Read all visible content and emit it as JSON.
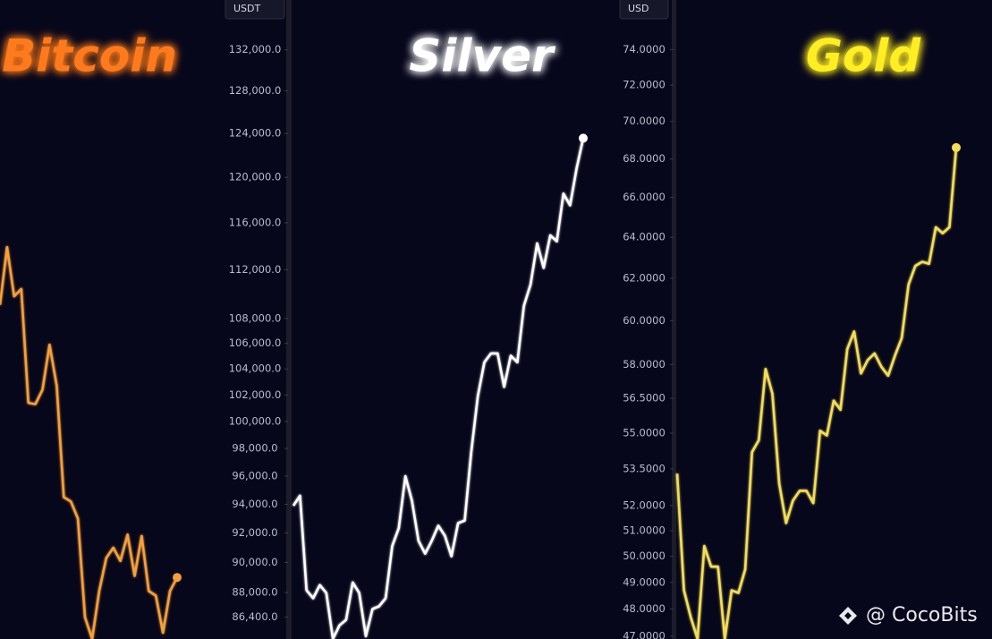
{
  "chart_data": [
    {
      "type": "line",
      "title": "Bitcoin",
      "title_color": "#ff7a1a",
      "ylabel": "USDT",
      "log": true,
      "series": [
        {
          "name": "Bitcoin",
          "color": "#f5a03a",
          "values": [
            109100,
            113900,
            109800,
            110400,
            101400,
            101300,
            102400,
            105900,
            102700,
            94500,
            94200,
            93000,
            86400,
            85000,
            88100,
            90300,
            91000,
            90100,
            91900,
            89100,
            91800,
            88100,
            87800,
            85400,
            88100,
            89000
          ]
        }
      ],
      "ylim": [
        85000,
        137000
      ],
      "yticks": [
        {
          "value": 132000,
          "label": "132,000.0"
        },
        {
          "value": 128000,
          "label": "128,000.0"
        },
        {
          "value": 124000,
          "label": "124,000.0"
        },
        {
          "value": 120000,
          "label": "120,000.0"
        },
        {
          "value": 116000,
          "label": "116,000.0"
        },
        {
          "value": 112000,
          "label": "112,000.0"
        },
        {
          "value": 108000,
          "label": "108,000.0"
        },
        {
          "value": 106000,
          "label": "106,000.0"
        },
        {
          "value": 104000,
          "label": "104,000.0"
        },
        {
          "value": 102000,
          "label": "102,000.0"
        },
        {
          "value": 100000,
          "label": "100,000.0"
        },
        {
          "value": 98000,
          "label": "98,000.0"
        },
        {
          "value": 96000,
          "label": "96,000.0"
        },
        {
          "value": 94000,
          "label": "94,000.0"
        },
        {
          "value": 92000,
          "label": "92,000.0"
        },
        {
          "value": 90000,
          "label": "90,000.0"
        },
        {
          "value": 88000,
          "label": "88,000.0"
        },
        {
          "value": 86400,
          "label": "86,400.0"
        }
      ]
    },
    {
      "type": "line",
      "title": "Silver",
      "title_color": "#ffffff",
      "ylabel": "USD",
      "log": true,
      "series": [
        {
          "name": "Silver",
          "color": "#ffffff",
          "values": [
            52.0,
            52.4,
            48.7,
            48.4,
            48.9,
            48.6,
            46.9,
            47.4,
            47.6,
            49.0,
            48.6,
            47.0,
            48.0,
            48.1,
            48.4,
            50.4,
            51.1,
            53.2,
            52.2,
            50.6,
            50.1,
            50.6,
            51.2,
            50.8,
            50.0,
            51.3,
            51.4,
            54.2,
            56.6,
            58.1,
            58.5,
            58.5,
            57.0,
            58.4,
            58.1,
            60.7,
            61.7,
            63.7,
            62.5,
            64.1,
            63.8,
            66.2,
            65.6,
            67.5,
            69.1
          ]
        }
      ],
      "ylim": [
        46.9,
        76.9
      ],
      "yticks": [
        {
          "value": 74,
          "label": "74.0000"
        },
        {
          "value": 72,
          "label": "72.0000"
        },
        {
          "value": 70,
          "label": "70.0000"
        },
        {
          "value": 68,
          "label": "68.0000"
        },
        {
          "value": 66,
          "label": "66.0000"
        },
        {
          "value": 64,
          "label": "64.0000"
        },
        {
          "value": 62,
          "label": "62.0000"
        },
        {
          "value": 60,
          "label": "60.0000"
        },
        {
          "value": 58,
          "label": "58.0000"
        },
        {
          "value": 56.5,
          "label": "56.5000"
        },
        {
          "value": 55,
          "label": "55.0000"
        },
        {
          "value": 53.5,
          "label": "53.5000"
        },
        {
          "value": 52,
          "label": "52.0000"
        },
        {
          "value": 51,
          "label": "51.0000"
        },
        {
          "value": 50,
          "label": "50.0000"
        },
        {
          "value": 49,
          "label": "49.0000"
        },
        {
          "value": 48,
          "label": "48.0000"
        },
        {
          "value": 47,
          "label": "47.0000"
        }
      ]
    },
    {
      "type": "line",
      "title": "Gold",
      "title_color": "#ffee22",
      "log": true,
      "series": [
        {
          "name": "Gold",
          "color": "#f3de5a",
          "values": [
            53.3,
            48.7,
            47.7,
            46.9,
            50.4,
            49.6,
            49.6,
            46.9,
            48.7,
            48.6,
            49.5,
            54.2,
            54.7,
            57.8,
            56.7,
            52.9,
            51.3,
            52.2,
            52.6,
            52.6,
            52.1,
            55.1,
            54.9,
            56.4,
            56.0,
            58.7,
            59.5,
            57.6,
            58.2,
            58.5,
            57.9,
            57.5,
            58.4,
            59.2,
            61.7,
            62.6,
            62.8,
            62.7,
            64.5,
            64.2,
            64.5,
            68.6
          ]
        }
      ],
      "ylim": [
        46.9,
        76.9
      ]
    }
  ],
  "watermark": "@ CocoBits"
}
